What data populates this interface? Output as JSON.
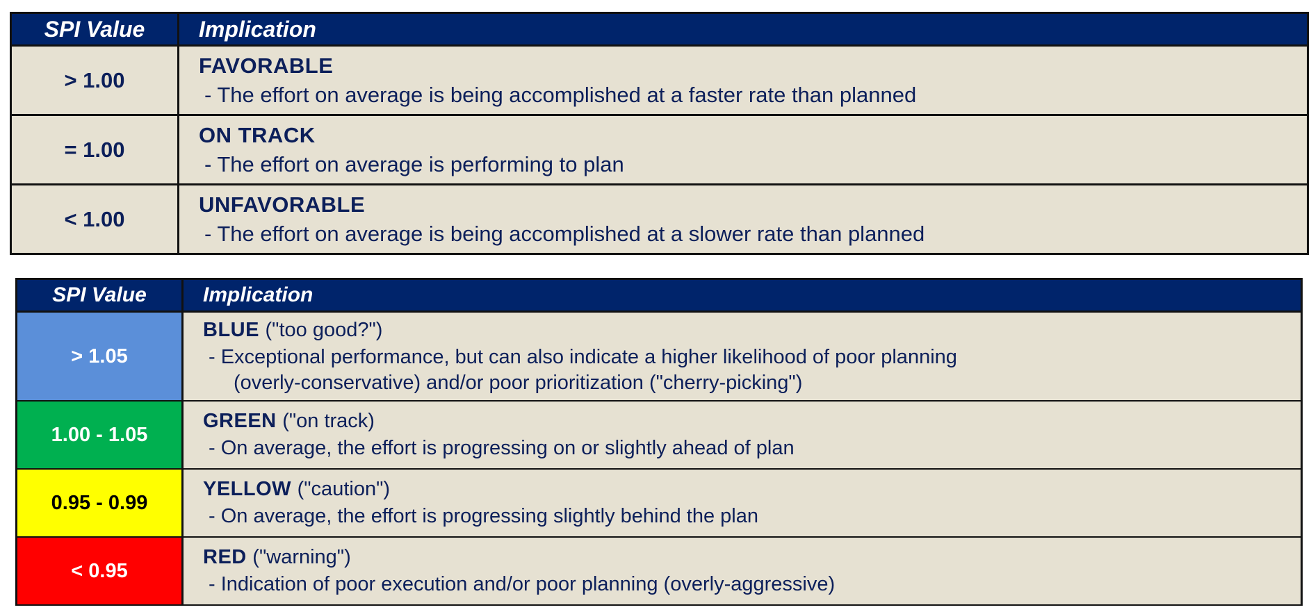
{
  "tables": [
    {
      "header": [
        "SPI Value",
        "Implication"
      ],
      "rows": [
        {
          "value": ">  1.00",
          "heading": "FAVORABLE",
          "lines": [
            "- The effort on average is being accomplished at a faster rate than planned"
          ]
        },
        {
          "value": "=  1.00",
          "heading": "ON TRACK",
          "lines": [
            "- The effort on average is performing to plan"
          ]
        },
        {
          "value": "<  1.00",
          "heading": "UNFAVORABLE",
          "lines": [
            "- The effort on average is being accomplished at a slower rate than planned"
          ]
        }
      ]
    },
    {
      "header": [
        "SPI Value",
        "Implication"
      ],
      "rows": [
        {
          "value": "> 1.05",
          "heading": "BLUE",
          "note": "(\"too good?\")",
          "lines": [
            "- Exceptional performance, but can also indicate a higher likelihood of poor planning",
            "(overly-conservative) and/or poor prioritization (\"cherry-picking\")"
          ]
        },
        {
          "value": "1.00 - 1.05",
          "heading": "GREEN",
          "note": "(\"on track)",
          "lines": [
            "- On average, the effort is progressing on or slightly ahead of plan"
          ]
        },
        {
          "value": "0.95  - 0.99",
          "heading": "YELLOW",
          "note": "(\"caution\")",
          "lines": [
            "- On average, the effort is progressing slightly behind the plan"
          ]
        },
        {
          "value": "< 0.95",
          "heading": "RED",
          "note": "(\"warning\")",
          "lines": [
            "- Indication of poor execution and/or poor planning (overly-aggressive)"
          ]
        }
      ]
    }
  ]
}
